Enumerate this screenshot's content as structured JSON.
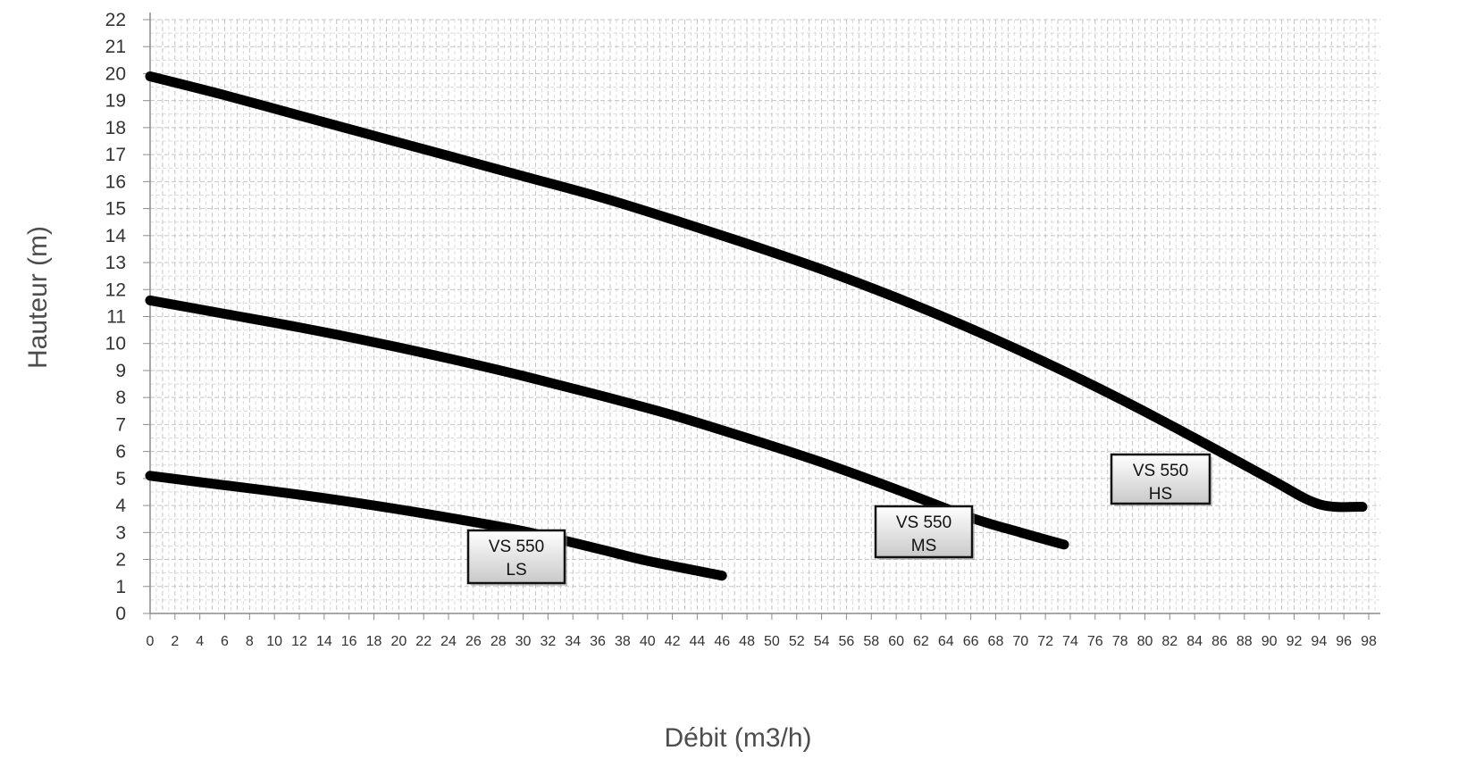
{
  "chart_data": {
    "type": "line",
    "title": "",
    "xlabel": "Débit (m3/h)",
    "ylabel": "Hauteur (m)",
    "xlim": [
      0,
      98
    ],
    "ylim": [
      0,
      22
    ],
    "x_ticks": [
      0,
      2,
      4,
      6,
      8,
      10,
      12,
      14,
      16,
      18,
      20,
      22,
      24,
      26,
      28,
      30,
      32,
      34,
      36,
      38,
      40,
      42,
      44,
      46,
      48,
      50,
      52,
      54,
      56,
      58,
      60,
      62,
      64,
      66,
      68,
      70,
      72,
      74,
      76,
      78,
      80,
      82,
      84,
      86,
      88,
      90,
      92,
      94,
      96,
      98
    ],
    "y_ticks": [
      0,
      1,
      2,
      3,
      4,
      5,
      6,
      7,
      8,
      9,
      10,
      11,
      12,
      13,
      14,
      15,
      16,
      17,
      18,
      19,
      20,
      21,
      22
    ],
    "grid": "major and minor, dashed",
    "legend": "none",
    "line_color": "#000000",
    "series": [
      {
        "label_lines": [
          "VS 550",
          "LS"
        ],
        "x": [
          0,
          6,
          12,
          18,
          24,
          30,
          36,
          40,
          46
        ],
        "y": [
          5.1,
          4.75,
          4.4,
          4.0,
          3.55,
          3.05,
          2.4,
          1.95,
          1.4
        ]
      },
      {
        "label_lines": [
          "VS 550",
          "MS"
        ],
        "x": [
          0,
          6,
          12,
          18,
          24,
          30,
          36,
          42,
          48,
          54,
          60,
          66,
          70,
          73.5
        ],
        "y": [
          11.6,
          11.1,
          10.6,
          10.05,
          9.45,
          8.8,
          8.1,
          7.35,
          6.5,
          5.6,
          4.6,
          3.55,
          3.0,
          2.55
        ]
      },
      {
        "label_lines": [
          "VS 550",
          "HS"
        ],
        "x": [
          0,
          6,
          12,
          18,
          24,
          30,
          36,
          42,
          48,
          54,
          60,
          66,
          72,
          78,
          84,
          90,
          94,
          97.5
        ],
        "y": [
          19.9,
          19.2,
          18.45,
          17.7,
          16.95,
          16.2,
          15.45,
          14.6,
          13.7,
          12.75,
          11.7,
          10.55,
          9.3,
          7.95,
          6.5,
          5.0,
          4.05,
          3.95
        ]
      }
    ]
  }
}
